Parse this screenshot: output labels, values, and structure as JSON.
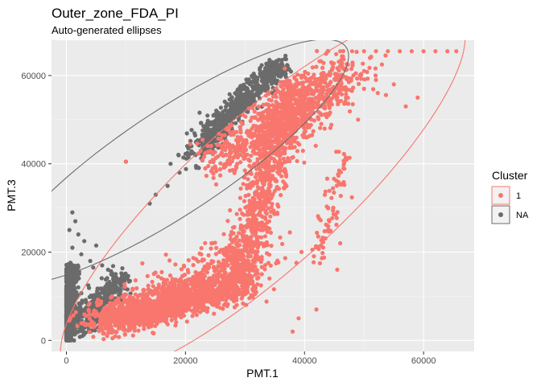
{
  "chart_data": {
    "type": "scatter",
    "title": "Outer_zone_FDA_PI",
    "subtitle": "Auto-generated ellipses",
    "xlabel": "PMT.1",
    "ylabel": "PMT.3",
    "xlim": [
      -2500,
      68500
    ],
    "ylim": [
      -2500,
      68000
    ],
    "x_ticks": [
      0,
      20000,
      40000,
      60000
    ],
    "y_ticks": [
      0,
      20000,
      40000,
      60000
    ],
    "x_tick_labels": [
      "0",
      "20000",
      "40000",
      "60000"
    ],
    "y_tick_labels": [
      "0",
      "20000",
      "40000",
      "60000"
    ],
    "grid": true,
    "legend": {
      "title": "Cluster",
      "position": "right",
      "entries": [
        {
          "label": "1",
          "color": "#F8766D"
        },
        {
          "label": "NA",
          "color": "#6B6B6B"
        }
      ]
    },
    "series": [
      {
        "name": "1",
        "color": "#F8766D",
        "ellipse": {
          "cx": 33000,
          "cy": 33000,
          "rx": 52000,
          "ry": 14500,
          "angle_deg": 52
        },
        "clusters": [
          {
            "x0": 5000,
            "y0": 4000,
            "x1": 30000,
            "y1": 13000,
            "n": 1400,
            "spread": 1800
          },
          {
            "x0": 12000,
            "y0": 6000,
            "x1": 32000,
            "y1": 20000,
            "n": 500,
            "spread": 2800
          },
          {
            "x0": 29000,
            "y0": 14000,
            "x1": 38000,
            "y1": 58000,
            "n": 900,
            "spread": 1500
          },
          {
            "x0": 26000,
            "y0": 40000,
            "x1": 45000,
            "y1": 60000,
            "n": 600,
            "spread": 2500
          },
          {
            "x0": 35000,
            "y0": 45000,
            "x1": 48000,
            "y1": 62000,
            "n": 300,
            "spread": 2500
          },
          {
            "x0": 42000,
            "y0": 18000,
            "x1": 47000,
            "y1": 42000,
            "n": 80,
            "spread": 900
          }
        ],
        "points": [
          [
            44000,
            65500
          ],
          [
            46000,
            65500
          ],
          [
            48000,
            65500
          ],
          [
            50000,
            65500
          ],
          [
            52000,
            65500
          ],
          [
            54000,
            65500
          ],
          [
            56000,
            65500
          ],
          [
            58000,
            65500
          ],
          [
            60000,
            65500
          ],
          [
            62000,
            65500
          ],
          [
            64000,
            65500
          ],
          [
            65500,
            65500
          ],
          [
            51000,
            64000
          ],
          [
            53000,
            62500
          ],
          [
            55000,
            58000
          ],
          [
            57000,
            53000
          ],
          [
            59000,
            55000
          ],
          [
            52000,
            59000
          ],
          [
            50000,
            57000
          ],
          [
            47000,
            55000
          ],
          [
            49000,
            50000
          ],
          [
            46000,
            22000
          ],
          [
            45500,
            16000
          ],
          [
            42000,
            7000
          ],
          [
            39000,
            5000
          ],
          [
            10000,
            40500
          ],
          [
            38000,
            2000
          ],
          [
            44000,
            30000
          ]
        ]
      },
      {
        "name": "NA",
        "color": "#6B6B6B",
        "ellipse": {
          "cx": 18000,
          "cy": 40500,
          "rx": 39000,
          "ry": 10500,
          "angle_deg": 43
        },
        "clusters": [
          {
            "x0": 0,
            "y0": 0,
            "x1": 800,
            "y1": 17000,
            "n": 700,
            "spread": 600
          },
          {
            "x0": 1500,
            "y0": 2000,
            "x1": 9000,
            "y1": 14000,
            "n": 450,
            "spread": 1300
          },
          {
            "x0": 23000,
            "y0": 45000,
            "x1": 36000,
            "y1": 63000,
            "n": 650,
            "spread": 1100
          },
          {
            "x0": 20000,
            "y0": 40000,
            "x1": 26000,
            "y1": 46000,
            "n": 60,
            "spread": 1200
          }
        ],
        "points": [
          [
            1000,
            29000
          ],
          [
            1500,
            27000
          ],
          [
            500,
            25000
          ],
          [
            2000,
            24000
          ],
          [
            3000,
            22500
          ],
          [
            1000,
            21000
          ],
          [
            5000,
            21500
          ],
          [
            2500,
            19500
          ],
          [
            4000,
            18000
          ],
          [
            6000,
            17000
          ],
          [
            10000,
            40500
          ],
          [
            14000,
            31000
          ],
          [
            15000,
            33000
          ],
          [
            17000,
            35000
          ],
          [
            19000,
            38000
          ],
          [
            17500,
            40000
          ],
          [
            20500,
            41500
          ],
          [
            21000,
            44000
          ],
          [
            7000,
            16000
          ],
          [
            4500,
            16500
          ]
        ]
      }
    ]
  }
}
